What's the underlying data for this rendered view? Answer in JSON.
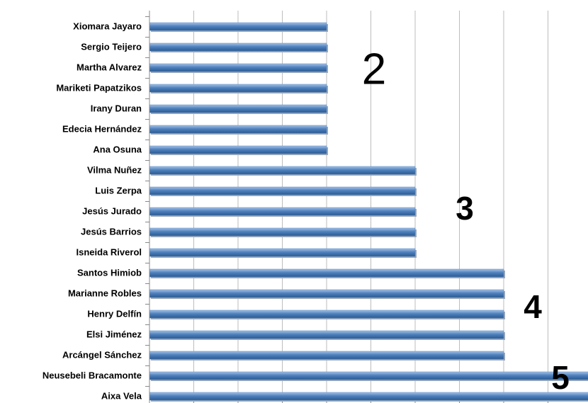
{
  "chart_data": {
    "type": "barh",
    "categories": [
      "Xiomara Jayaro",
      "Sergio Teijero",
      "Martha Alvarez",
      "Mariketi Papatzikos",
      "Irany Duran",
      "Edecia Hernández",
      "Ana Osuna",
      "Vilma Nuñez",
      "Luis Zerpa",
      "Jesús Jurado",
      "Jesús Barrios",
      "Isneida Riverol",
      "Santos Himiob",
      "Marianne Robles",
      "Henry Delfín",
      "Elsi Jiménez",
      "Arcángel Sánchez",
      "Neusebeli  Bracamonte",
      "Aixa  Vela"
    ],
    "values": [
      2,
      2,
      2,
      2,
      2,
      2,
      2,
      3,
      3,
      3,
      3,
      3,
      4,
      4,
      4,
      4,
      4,
      5,
      5
    ],
    "color": "#4f81bd",
    "xlim": [
      0,
      5
    ],
    "xticks": [
      0,
      0.5,
      1,
      1.5,
      2,
      2.5,
      3,
      3.5,
      4,
      4.5
    ],
    "grid": true,
    "annotations": [
      "2",
      "3",
      "4",
      "5"
    ]
  }
}
